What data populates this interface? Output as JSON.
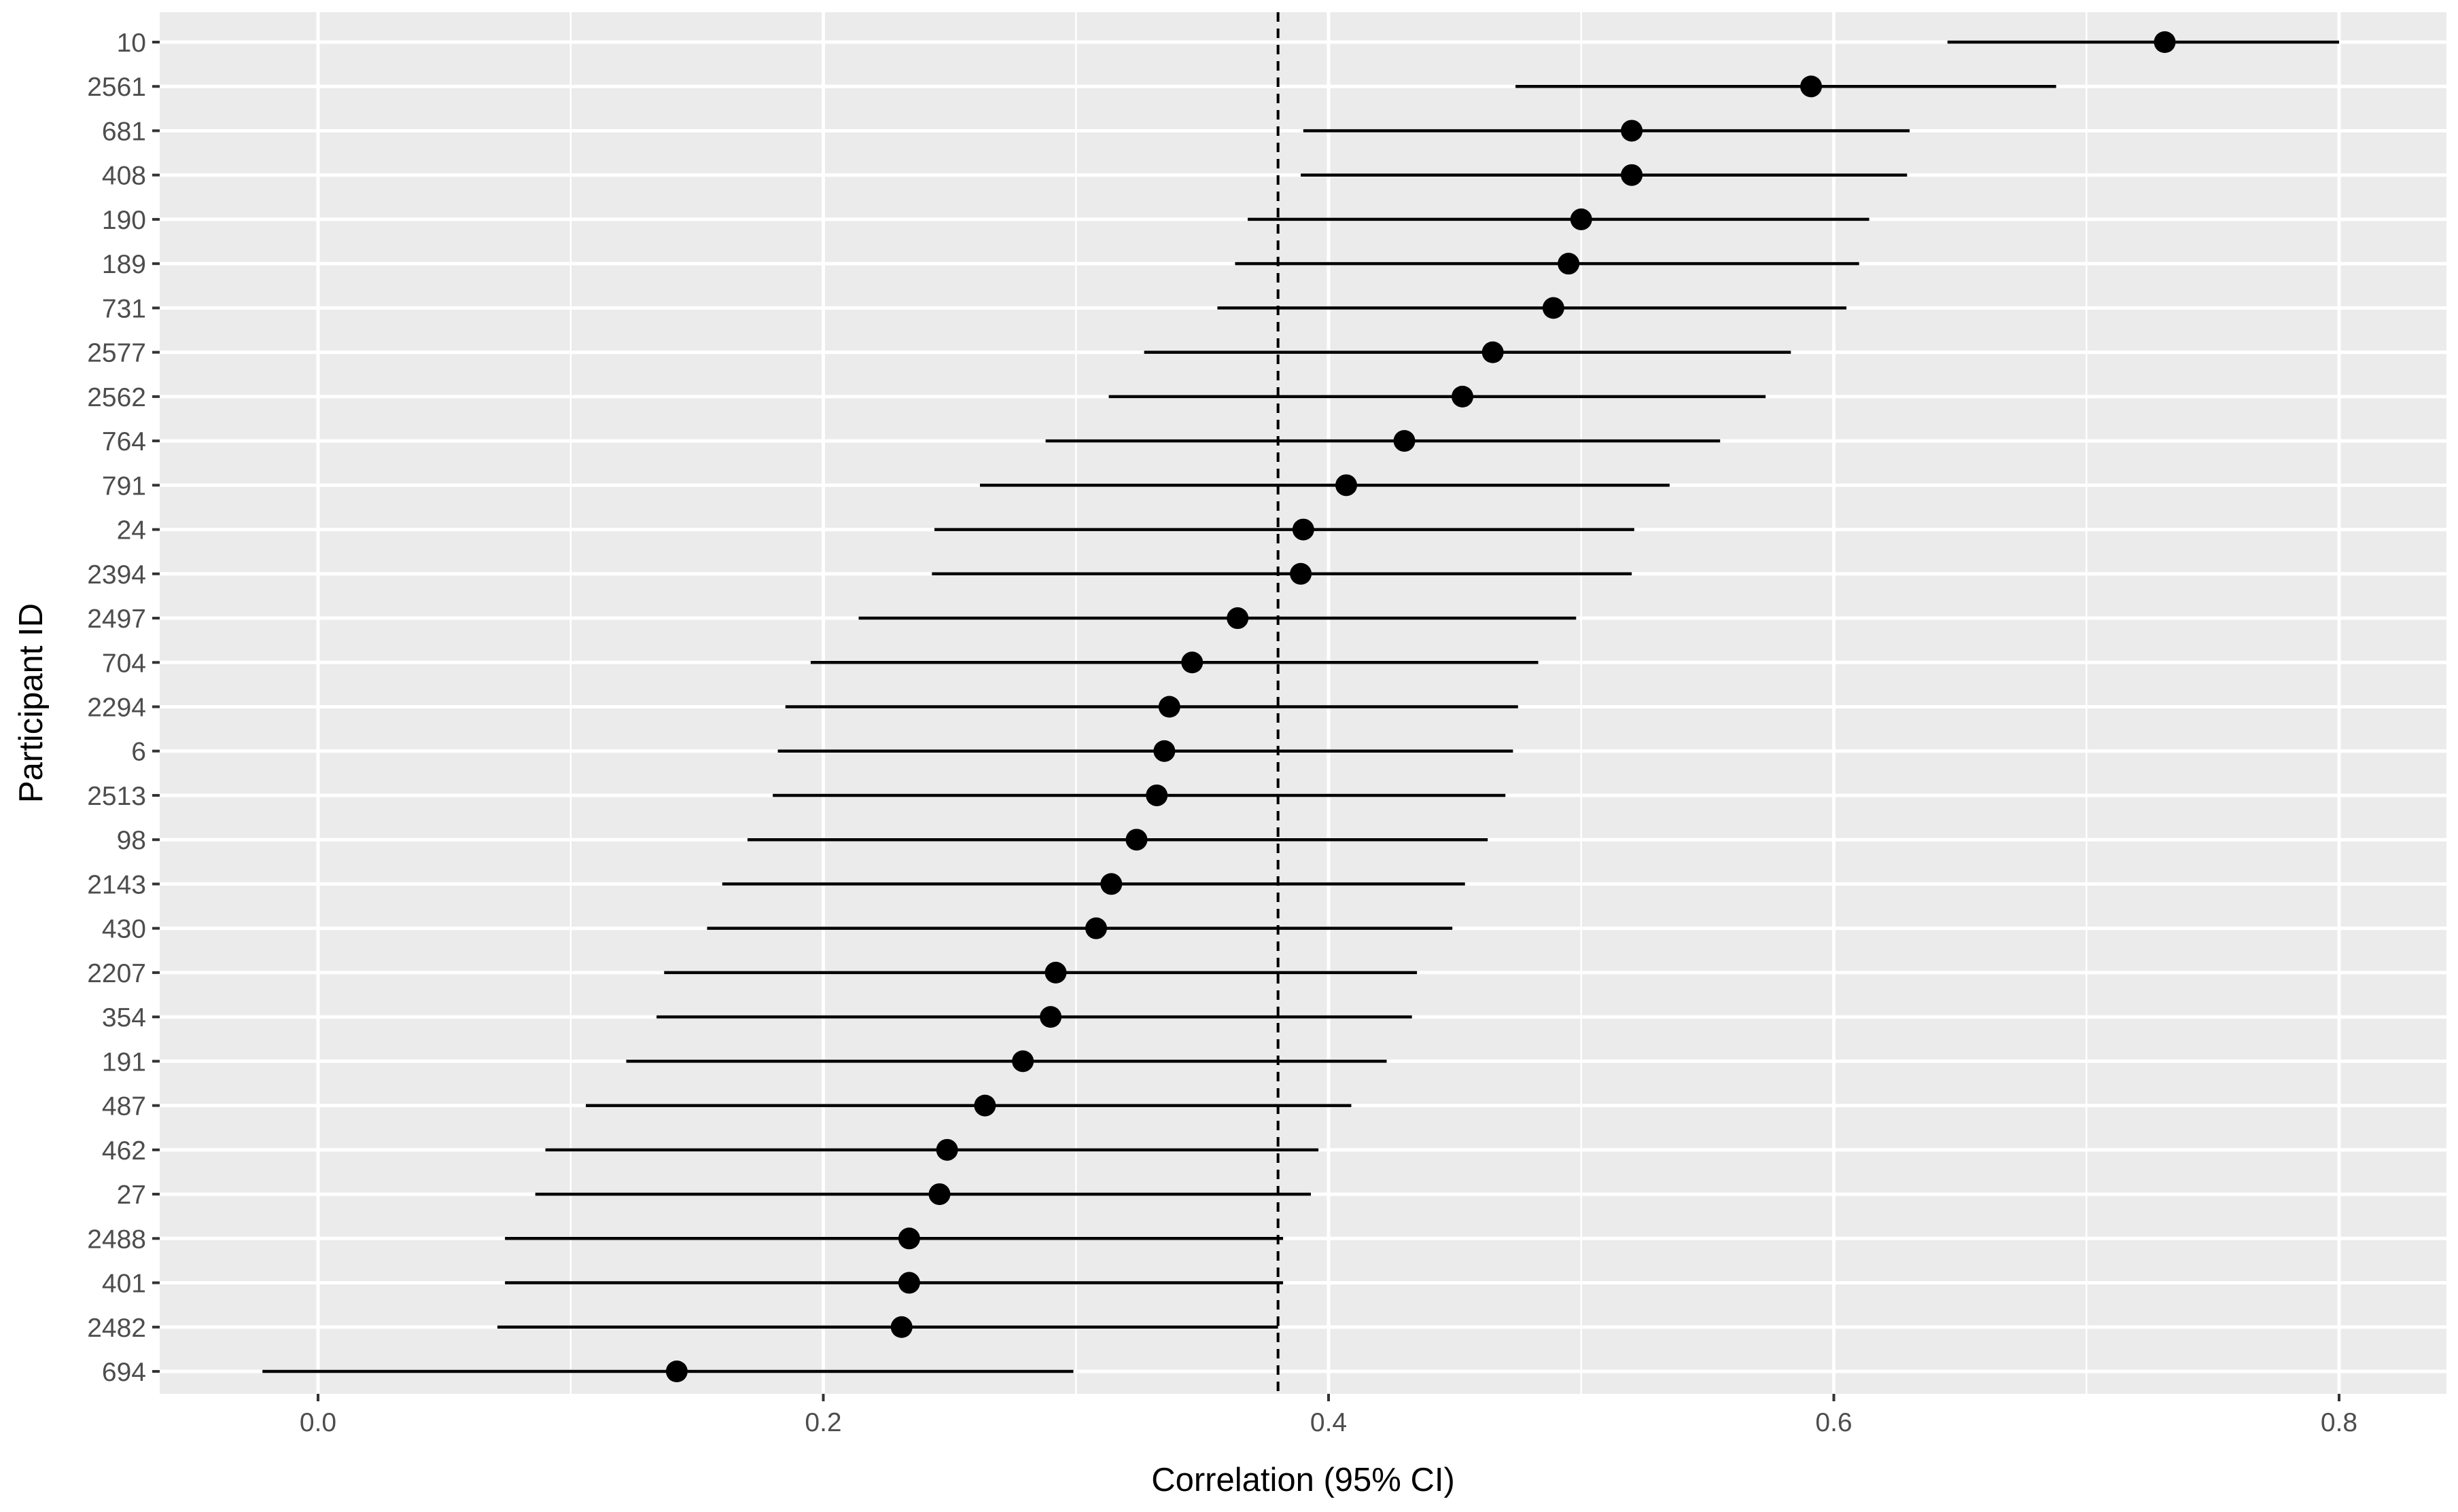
{
  "chart_data": {
    "type": "scatter",
    "subtype": "forest-plot",
    "xlabel": "Correlation (95% CI)",
    "ylabel": "Participant ID",
    "xlim": [
      -0.065,
      0.838
    ],
    "xticks": [
      0.0,
      0.2,
      0.4,
      0.6,
      0.8
    ],
    "xtick_labels": [
      "0.0",
      "0.2",
      "0.4",
      "0.6",
      "0.8"
    ],
    "reference_line": {
      "x": 0.38,
      "style": "dashed"
    },
    "grid": true,
    "panel_background": "#ebebeb",
    "grid_color": "#ffffff",
    "point_color": "#000000",
    "rows": [
      {
        "id": "10",
        "estimate": 0.731,
        "lower": 0.645,
        "upper": 0.8
      },
      {
        "id": "2561",
        "estimate": 0.591,
        "lower": 0.474,
        "upper": 0.688
      },
      {
        "id": "681",
        "estimate": 0.52,
        "lower": 0.39,
        "upper": 0.63
      },
      {
        "id": "408",
        "estimate": 0.52,
        "lower": 0.389,
        "upper": 0.629
      },
      {
        "id": "190",
        "estimate": 0.5,
        "lower": 0.368,
        "upper": 0.614
      },
      {
        "id": "189",
        "estimate": 0.495,
        "lower": 0.363,
        "upper": 0.61
      },
      {
        "id": "731",
        "estimate": 0.489,
        "lower": 0.356,
        "upper": 0.605
      },
      {
        "id": "2577",
        "estimate": 0.465,
        "lower": 0.327,
        "upper": 0.583
      },
      {
        "id": "2562",
        "estimate": 0.453,
        "lower": 0.313,
        "upper": 0.573
      },
      {
        "id": "764",
        "estimate": 0.43,
        "lower": 0.288,
        "upper": 0.555
      },
      {
        "id": "791",
        "estimate": 0.407,
        "lower": 0.262,
        "upper": 0.535
      },
      {
        "id": "24",
        "estimate": 0.39,
        "lower": 0.244,
        "upper": 0.521
      },
      {
        "id": "2394",
        "estimate": 0.389,
        "lower": 0.243,
        "upper": 0.52
      },
      {
        "id": "2497",
        "estimate": 0.364,
        "lower": 0.214,
        "upper": 0.498
      },
      {
        "id": "704",
        "estimate": 0.346,
        "lower": 0.195,
        "upper": 0.483
      },
      {
        "id": "2294",
        "estimate": 0.337,
        "lower": 0.185,
        "upper": 0.475
      },
      {
        "id": "6",
        "estimate": 0.335,
        "lower": 0.182,
        "upper": 0.473
      },
      {
        "id": "2513",
        "estimate": 0.332,
        "lower": 0.18,
        "upper": 0.47
      },
      {
        "id": "98",
        "estimate": 0.324,
        "lower": 0.17,
        "upper": 0.463
      },
      {
        "id": "2143",
        "estimate": 0.314,
        "lower": 0.16,
        "upper": 0.454
      },
      {
        "id": "430",
        "estimate": 0.308,
        "lower": 0.154,
        "upper": 0.449
      },
      {
        "id": "2207",
        "estimate": 0.292,
        "lower": 0.137,
        "upper": 0.435
      },
      {
        "id": "354",
        "estimate": 0.29,
        "lower": 0.134,
        "upper": 0.433
      },
      {
        "id": "191",
        "estimate": 0.279,
        "lower": 0.122,
        "upper": 0.423
      },
      {
        "id": "487",
        "estimate": 0.264,
        "lower": 0.106,
        "upper": 0.409
      },
      {
        "id": "462",
        "estimate": 0.249,
        "lower": 0.09,
        "upper": 0.396
      },
      {
        "id": "27",
        "estimate": 0.246,
        "lower": 0.086,
        "upper": 0.393
      },
      {
        "id": "2488",
        "estimate": 0.234,
        "lower": 0.074,
        "upper": 0.382
      },
      {
        "id": "401",
        "estimate": 0.234,
        "lower": 0.074,
        "upper": 0.382
      },
      {
        "id": "2482",
        "estimate": 0.231,
        "lower": 0.071,
        "upper": 0.38
      },
      {
        "id": "694",
        "estimate": 0.142,
        "lower": -0.022,
        "upper": 0.299
      }
    ]
  }
}
